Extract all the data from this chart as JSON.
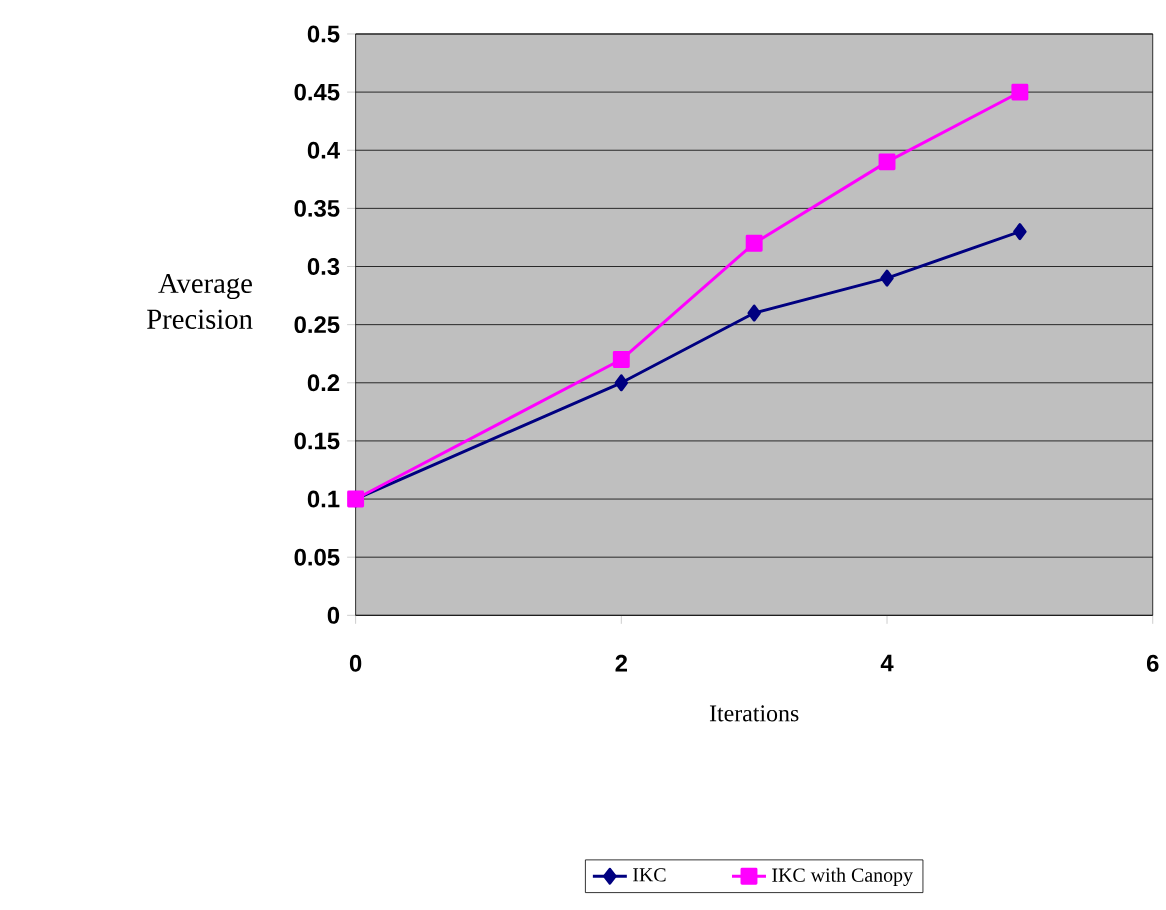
{
  "chart_data": {
    "type": "line",
    "xlabel": "Iterations",
    "ylabel": "Average Precision",
    "xlim": [
      0,
      6
    ],
    "ylim": [
      0,
      0.5
    ],
    "xticks": [
      0,
      2,
      4,
      6
    ],
    "yticks": [
      0,
      0.05,
      0.1,
      0.15,
      0.2,
      0.25,
      0.3,
      0.35,
      0.4,
      0.45,
      0.5
    ],
    "grid": "y",
    "legend": "bottom",
    "series": [
      {
        "name": "IKC",
        "color": "#000080",
        "marker": "diamond",
        "x": [
          0,
          2,
          3,
          4,
          5
        ],
        "values": [
          0.1,
          0.2,
          0.26,
          0.29,
          0.33
        ]
      },
      {
        "name": "IKC with Canopy",
        "color": "#ff00ff",
        "marker": "square",
        "x": [
          0,
          2,
          3,
          4,
          5
        ],
        "values": [
          0.1,
          0.22,
          0.32,
          0.39,
          0.45
        ]
      }
    ]
  }
}
